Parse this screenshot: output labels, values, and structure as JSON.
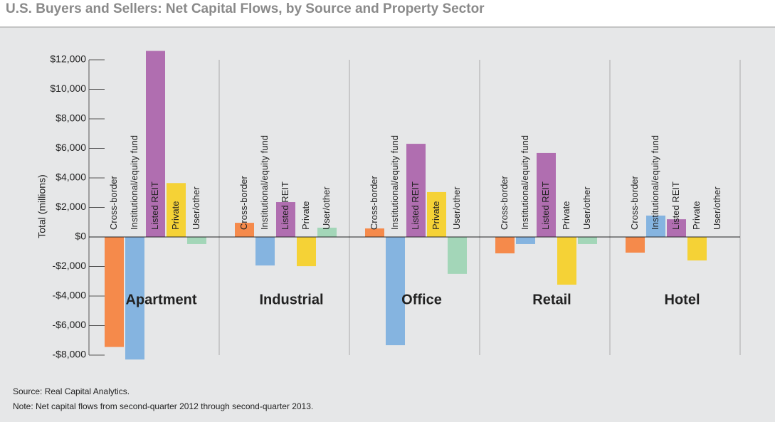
{
  "chart_data": {
    "type": "bar",
    "title": "U.S. Buyers and Sellers: Net Capital Flows, by Source and Property Sector",
    "y_label": "Total (millions)",
    "categories": [
      "Apartment",
      "Industrial",
      "Office",
      "Retail",
      "Hotel"
    ],
    "series": [
      {
        "name": "Cross-border",
        "color": "#f58a4b",
        "values": [
          -7450,
          960,
          580,
          -1110,
          -1060
        ]
      },
      {
        "name": "Institutional/equity fund",
        "color": "#85b4e0",
        "values": [
          -8300,
          -1930,
          -7330,
          -480,
          1450
        ]
      },
      {
        "name": "Listed REIT",
        "color": "#b06eb0",
        "values": [
          12600,
          2360,
          6310,
          5690,
          1200
        ]
      },
      {
        "name": "Private",
        "color": "#f5d236",
        "values": [
          3650,
          -1980,
          3040,
          -3230,
          -1590
        ]
      },
      {
        "name": "User/other",
        "color": "#a3d6b8",
        "values": [
          -480,
          630,
          -2500,
          -480,
          0
        ]
      }
    ],
    "ylim": [
      -8000,
      12000
    ],
    "yticks": [
      {
        "value": -8000,
        "label": "-$8,000"
      },
      {
        "value": -6000,
        "label": "-$6,000"
      },
      {
        "value": -4000,
        "label": "-$4,000"
      },
      {
        "value": -2000,
        "label": "-$2,000"
      },
      {
        "value": 0,
        "label": "$0"
      },
      {
        "value": 2000,
        "label": "$2,000"
      },
      {
        "value": 4000,
        "label": "$4,000"
      },
      {
        "value": 6000,
        "label": "$6,000"
      },
      {
        "value": 8000,
        "label": "$8,000"
      },
      {
        "value": 10000,
        "label": "$10,000"
      },
      {
        "value": 12000,
        "label": "$12,000"
      }
    ],
    "notes": [
      "Source: Real Capital Analytics.",
      "Note: Net capital flows from second-quarter 2012 through second-quarter 2013."
    ]
  }
}
